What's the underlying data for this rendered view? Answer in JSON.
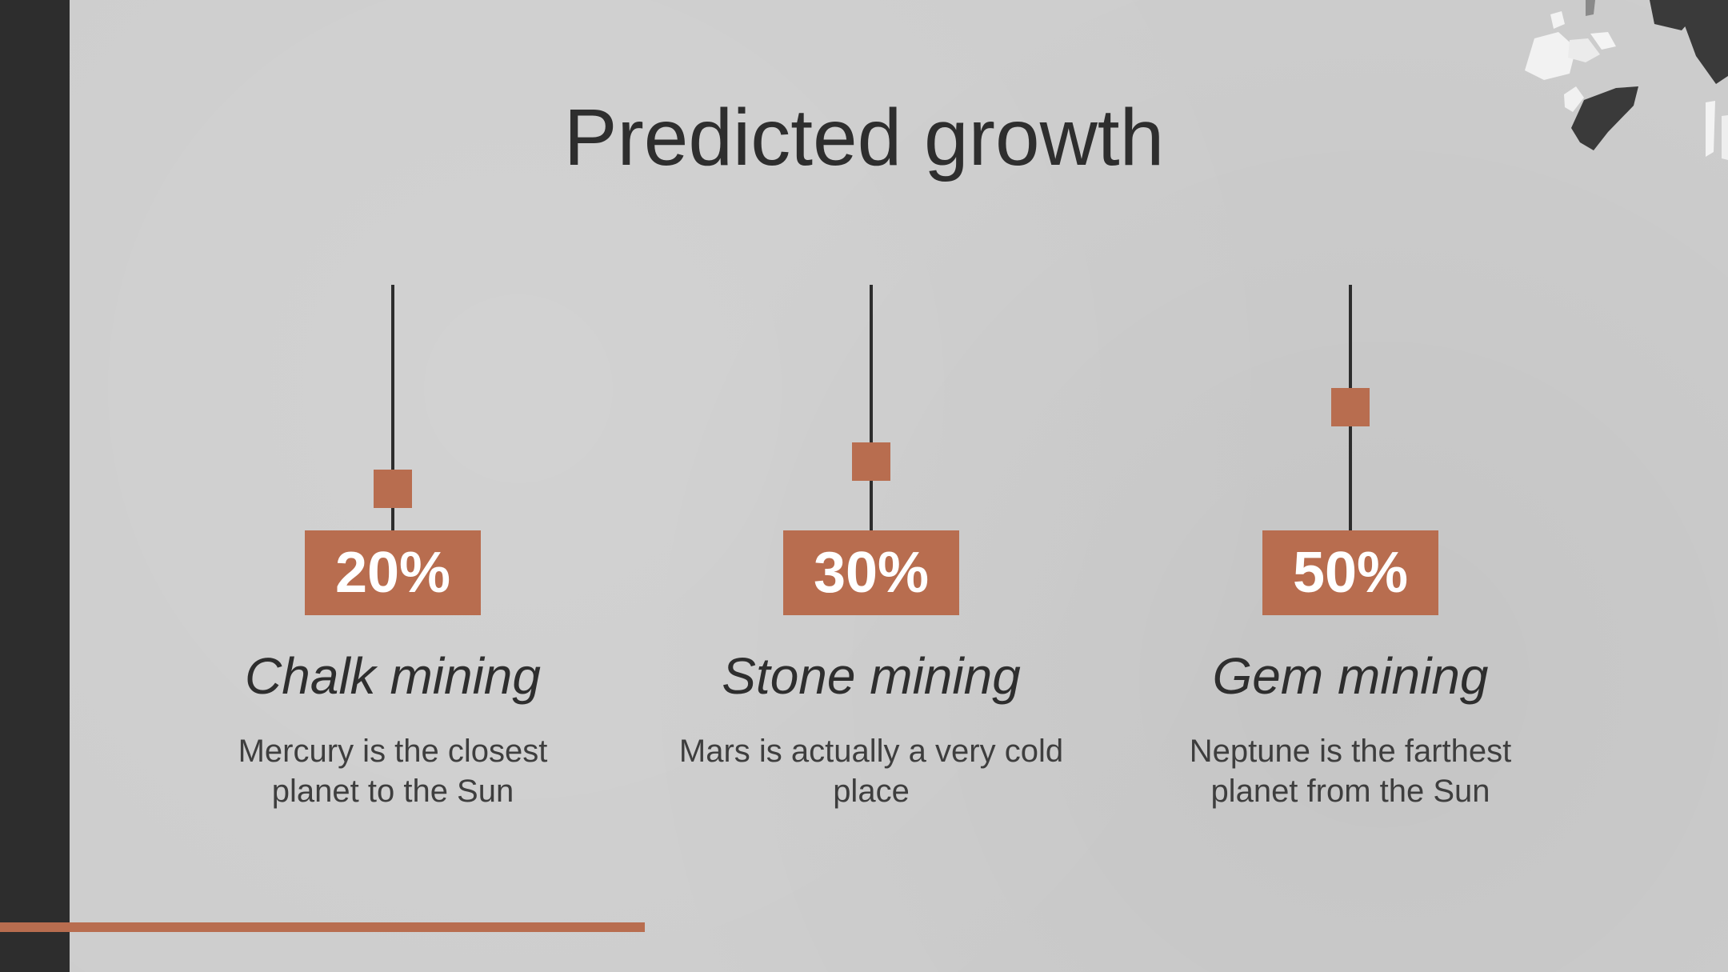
{
  "slide": {
    "title": "Predicted growth",
    "accent_color": "#b86d4f",
    "dark_color": "#2d2d2d",
    "background_color": "#cdcdcd"
  },
  "items": [
    {
      "percent_label": "20%",
      "value": 20,
      "name": "Chalk mining",
      "description": "Mercury is the closest planet to the Sun"
    },
    {
      "percent_label": "30%",
      "value": 30,
      "name": "Stone mining",
      "description": "Mars is actually a very cold place"
    },
    {
      "percent_label": "50%",
      "value": 50,
      "name": "Gem mining",
      "description": "Neptune is the farthest planet from the Sun"
    }
  ],
  "decor": {
    "corner_icon": "stones-cluster-icon"
  }
}
